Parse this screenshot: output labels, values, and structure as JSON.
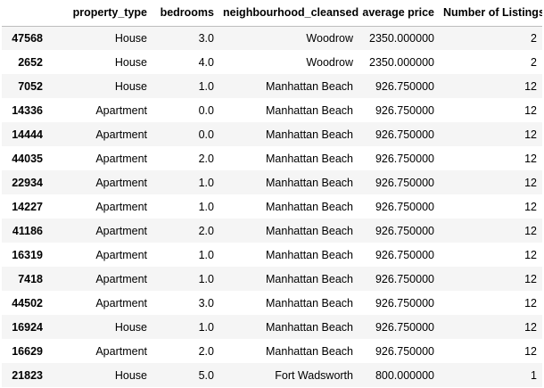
{
  "table": {
    "index_header": "",
    "columns": [
      "property_type",
      "bedrooms",
      "neighbourhood_cleansed",
      "average price",
      "Number of Listings"
    ],
    "rows": [
      {
        "index": "47568",
        "property_type": "House",
        "bedrooms": "3.0",
        "neighbourhood_cleansed": "Woodrow",
        "average_price": "2350.000000",
        "number_of_listings": "2"
      },
      {
        "index": "2652",
        "property_type": "House",
        "bedrooms": "4.0",
        "neighbourhood_cleansed": "Woodrow",
        "average_price": "2350.000000",
        "number_of_listings": "2"
      },
      {
        "index": "7052",
        "property_type": "House",
        "bedrooms": "1.0",
        "neighbourhood_cleansed": "Manhattan Beach",
        "average_price": "926.750000",
        "number_of_listings": "12"
      },
      {
        "index": "14336",
        "property_type": "Apartment",
        "bedrooms": "0.0",
        "neighbourhood_cleansed": "Manhattan Beach",
        "average_price": "926.750000",
        "number_of_listings": "12"
      },
      {
        "index": "14444",
        "property_type": "Apartment",
        "bedrooms": "0.0",
        "neighbourhood_cleansed": "Manhattan Beach",
        "average_price": "926.750000",
        "number_of_listings": "12"
      },
      {
        "index": "44035",
        "property_type": "Apartment",
        "bedrooms": "2.0",
        "neighbourhood_cleansed": "Manhattan Beach",
        "average_price": "926.750000",
        "number_of_listings": "12"
      },
      {
        "index": "22934",
        "property_type": "Apartment",
        "bedrooms": "1.0",
        "neighbourhood_cleansed": "Manhattan Beach",
        "average_price": "926.750000",
        "number_of_listings": "12"
      },
      {
        "index": "14227",
        "property_type": "Apartment",
        "bedrooms": "1.0",
        "neighbourhood_cleansed": "Manhattan Beach",
        "average_price": "926.750000",
        "number_of_listings": "12"
      },
      {
        "index": "41186",
        "property_type": "Apartment",
        "bedrooms": "2.0",
        "neighbourhood_cleansed": "Manhattan Beach",
        "average_price": "926.750000",
        "number_of_listings": "12"
      },
      {
        "index": "16319",
        "property_type": "Apartment",
        "bedrooms": "1.0",
        "neighbourhood_cleansed": "Manhattan Beach",
        "average_price": "926.750000",
        "number_of_listings": "12"
      },
      {
        "index": "7418",
        "property_type": "Apartment",
        "bedrooms": "1.0",
        "neighbourhood_cleansed": "Manhattan Beach",
        "average_price": "926.750000",
        "number_of_listings": "12"
      },
      {
        "index": "44502",
        "property_type": "Apartment",
        "bedrooms": "3.0",
        "neighbourhood_cleansed": "Manhattan Beach",
        "average_price": "926.750000",
        "number_of_listings": "12"
      },
      {
        "index": "16924",
        "property_type": "House",
        "bedrooms": "1.0",
        "neighbourhood_cleansed": "Manhattan Beach",
        "average_price": "926.750000",
        "number_of_listings": "12"
      },
      {
        "index": "16629",
        "property_type": "Apartment",
        "bedrooms": "2.0",
        "neighbourhood_cleansed": "Manhattan Beach",
        "average_price": "926.750000",
        "number_of_listings": "12"
      },
      {
        "index": "21823",
        "property_type": "House",
        "bedrooms": "5.0",
        "neighbourhood_cleansed": "Fort Wadsworth",
        "average_price": "800.000000",
        "number_of_listings": "1"
      }
    ]
  }
}
